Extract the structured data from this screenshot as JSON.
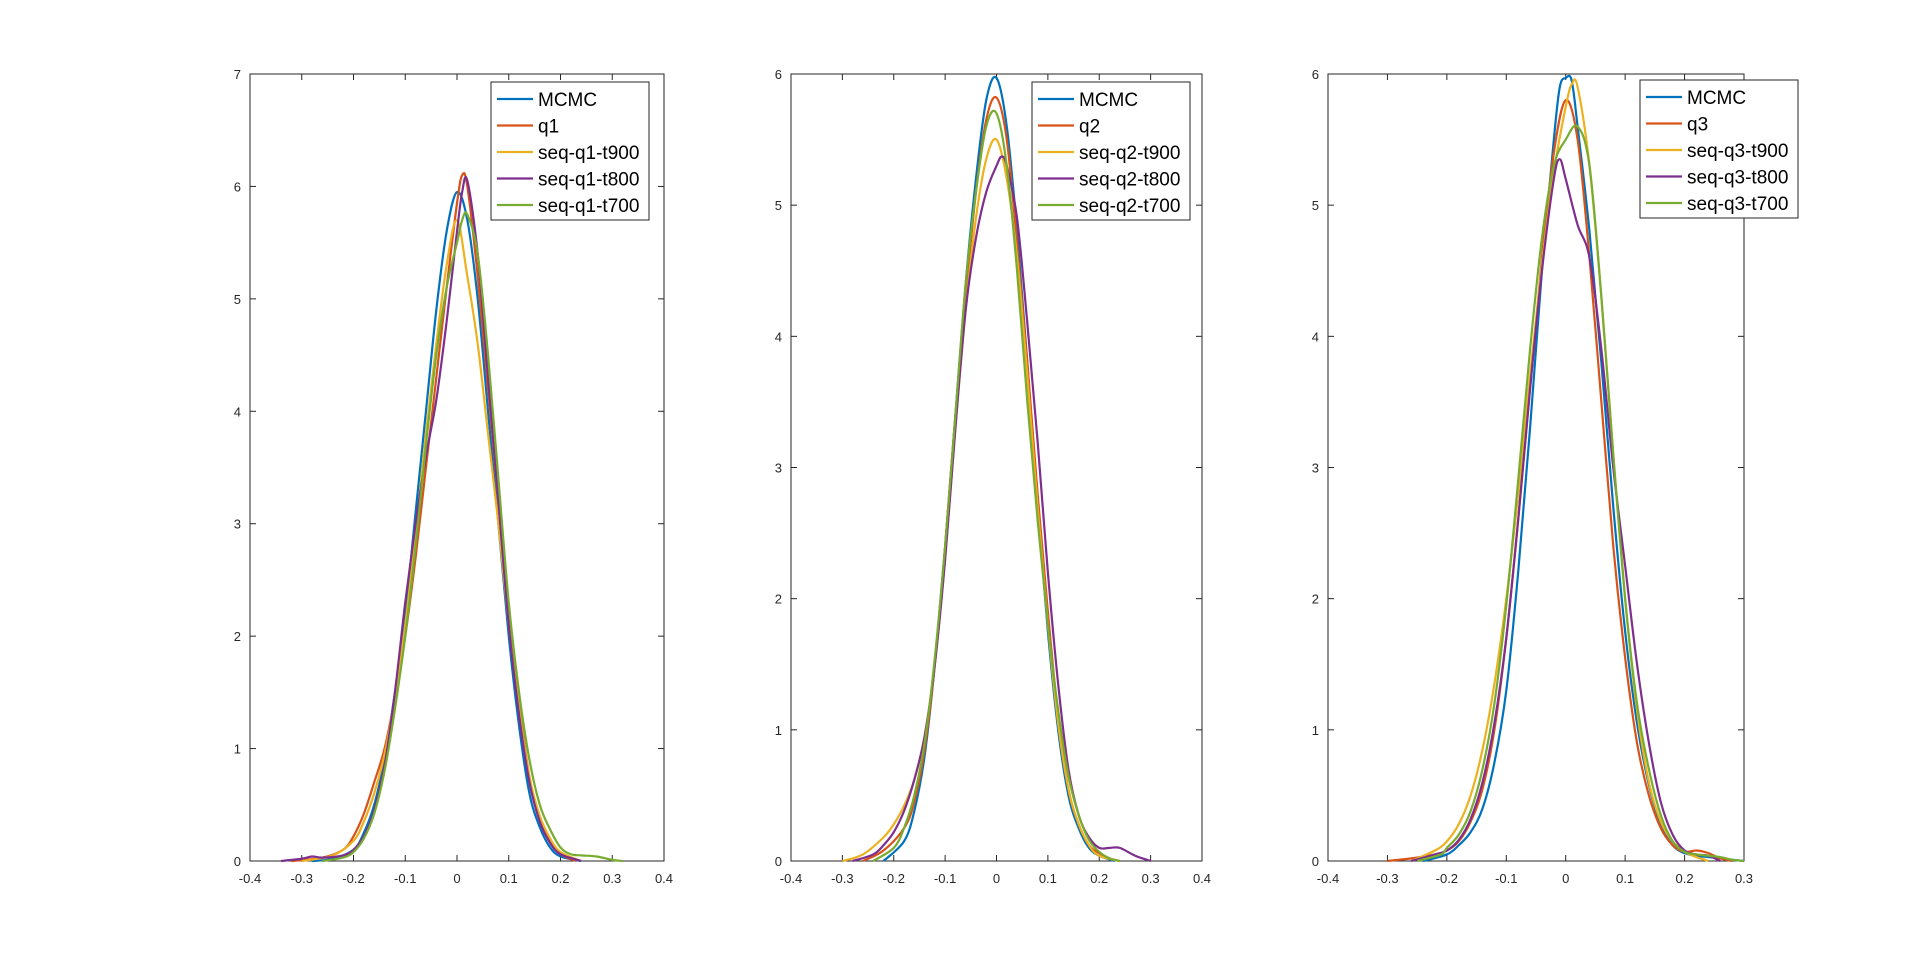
{
  "colors": {
    "mcmc": "#0072BD",
    "q": "#D95319",
    "t900": "#EDB120",
    "t800": "#7E2F8E",
    "t700": "#77AC30",
    "axis": "#262626"
  },
  "chart_data": [
    {
      "type": "line",
      "xlim": [
        -0.4,
        0.4
      ],
      "ylim": [
        0,
        7
      ],
      "xticks": [
        -0.4,
        -0.3,
        -0.2,
        -0.1,
        0,
        0.1,
        0.2,
        0.3,
        0.4
      ],
      "xtick_labels": [
        "-0.4",
        "-0.3",
        "-0.2",
        "-0.1",
        "0",
        "0.1",
        "0.2",
        "0.3",
        "0.4"
      ],
      "yticks": [
        0,
        1,
        2,
        3,
        4,
        5,
        6,
        7
      ],
      "ytick_labels": [
        "0",
        "1",
        "2",
        "3",
        "4",
        "5",
        "6",
        "7"
      ],
      "legend_position": "top-right",
      "series": [
        {
          "name": "MCMC",
          "color": "#0072BD",
          "x": [
            -0.28,
            -0.24,
            -0.2,
            -0.18,
            -0.16,
            -0.14,
            -0.12,
            -0.1,
            -0.08,
            -0.06,
            -0.04,
            -0.02,
            0,
            0.02,
            0.04,
            0.06,
            0.08,
            0.1,
            0.12,
            0.14,
            0.16,
            0.18,
            0.2,
            0.24
          ],
          "y": [
            0,
            0.02,
            0.1,
            0.25,
            0.5,
            0.9,
            1.5,
            2.2,
            3.1,
            4.0,
            4.9,
            5.6,
            5.95,
            5.7,
            5.0,
            4.0,
            3.0,
            2.0,
            1.2,
            0.6,
            0.3,
            0.12,
            0.04,
            0
          ]
        },
        {
          "name": "q1",
          "color": "#D95319",
          "x": [
            -0.32,
            -0.26,
            -0.22,
            -0.2,
            -0.18,
            -0.16,
            -0.14,
            -0.12,
            -0.1,
            -0.08,
            -0.06,
            -0.04,
            -0.02,
            0,
            0.01,
            0.02,
            0.04,
            0.06,
            0.08,
            0.1,
            0.12,
            0.14,
            0.16,
            0.18,
            0.2,
            0.23
          ],
          "y": [
            0,
            0.03,
            0.1,
            0.22,
            0.42,
            0.7,
            1.0,
            1.45,
            2.0,
            2.7,
            3.5,
            4.3,
            5.1,
            5.85,
            6.1,
            6.0,
            5.2,
            4.2,
            3.2,
            2.2,
            1.4,
            0.75,
            0.38,
            0.18,
            0.06,
            0
          ]
        },
        {
          "name": "seq-q1-t900",
          "color": "#EDB120",
          "x": [
            -0.3,
            -0.24,
            -0.2,
            -0.18,
            -0.16,
            -0.14,
            -0.12,
            -0.1,
            -0.08,
            -0.06,
            -0.04,
            -0.02,
            0,
            0.02,
            0.04,
            0.06,
            0.08,
            0.1,
            0.12,
            0.14,
            0.16,
            0.18,
            0.2,
            0.24
          ],
          "y": [
            0,
            0.05,
            0.18,
            0.35,
            0.6,
            0.95,
            1.45,
            2.1,
            2.9,
            3.8,
            4.6,
            5.3,
            5.7,
            5.2,
            4.6,
            3.8,
            3.0,
            2.1,
            1.35,
            0.75,
            0.4,
            0.2,
            0.08,
            0
          ]
        },
        {
          "name": "seq-q1-t800",
          "color": "#7E2F8E",
          "x": [
            -0.34,
            -0.3,
            -0.28,
            -0.26,
            -0.22,
            -0.2,
            -0.18,
            -0.16,
            -0.14,
            -0.12,
            -0.1,
            -0.08,
            -0.06,
            -0.04,
            -0.02,
            0,
            0.01,
            0.02,
            0.04,
            0.06,
            0.08,
            0.1,
            0.12,
            0.14,
            0.16,
            0.18,
            0.2,
            0.24
          ],
          "y": [
            0,
            0.02,
            0.04,
            0.03,
            0.05,
            0.1,
            0.22,
            0.45,
            0.85,
            1.5,
            2.3,
            3.0,
            3.6,
            4.1,
            4.8,
            5.6,
            5.95,
            6.05,
            5.4,
            4.3,
            3.2,
            2.1,
            1.3,
            0.7,
            0.35,
            0.16,
            0.06,
            0
          ]
        },
        {
          "name": "seq-q1-t700",
          "color": "#77AC30",
          "x": [
            -0.26,
            -0.22,
            -0.2,
            -0.18,
            -0.16,
            -0.14,
            -0.12,
            -0.1,
            -0.08,
            -0.06,
            -0.04,
            -0.02,
            0,
            0.01,
            0.02,
            0.04,
            0.06,
            0.08,
            0.1,
            0.12,
            0.14,
            0.16,
            0.18,
            0.2,
            0.22,
            0.24,
            0.27,
            0.3,
            0.32
          ],
          "y": [
            0,
            0.03,
            0.08,
            0.2,
            0.42,
            0.8,
            1.35,
            2.0,
            2.8,
            3.7,
            4.5,
            5.1,
            5.5,
            5.7,
            5.75,
            5.4,
            4.5,
            3.4,
            2.3,
            1.5,
            0.9,
            0.5,
            0.28,
            0.12,
            0.06,
            0.05,
            0.04,
            0.01,
            0
          ]
        }
      ],
      "legend_labels": [
        "MCMC",
        "q1",
        "seq-q1-t900",
        "seq-q1-t800",
        "seq-q1-t700"
      ]
    },
    {
      "type": "line",
      "xlim": [
        -0.4,
        0.4
      ],
      "ylim": [
        0,
        6
      ],
      "xticks": [
        -0.4,
        -0.3,
        -0.2,
        -0.1,
        0,
        0.1,
        0.2,
        0.3,
        0.4
      ],
      "xtick_labels": [
        "-0.4",
        "-0.3",
        "-0.2",
        "-0.1",
        "0",
        "0.1",
        "0.2",
        "0.3",
        "0.4"
      ],
      "yticks": [
        0,
        1,
        2,
        3,
        4,
        5,
        6
      ],
      "ytick_labels": [
        "0",
        "1",
        "2",
        "3",
        "4",
        "5",
        "6"
      ],
      "legend_position": "top-right",
      "series": [
        {
          "name": "MCMC",
          "color": "#0072BD",
          "x": [
            -0.22,
            -0.18,
            -0.16,
            -0.14,
            -0.12,
            -0.1,
            -0.08,
            -0.06,
            -0.04,
            -0.02,
            0,
            0.02,
            0.04,
            0.06,
            0.08,
            0.1,
            0.12,
            0.14,
            0.16,
            0.18,
            0.2,
            0.23
          ],
          "y": [
            0,
            0.15,
            0.38,
            0.8,
            1.5,
            2.4,
            3.4,
            4.4,
            5.2,
            5.8,
            5.97,
            5.6,
            4.8,
            3.8,
            2.7,
            1.75,
            1.0,
            0.5,
            0.25,
            0.1,
            0.04,
            0
          ]
        },
        {
          "name": "q2",
          "color": "#D95319",
          "x": [
            -0.26,
            -0.22,
            -0.18,
            -0.16,
            -0.14,
            -0.12,
            -0.1,
            -0.08,
            -0.06,
            -0.04,
            -0.02,
            0,
            0.02,
            0.04,
            0.06,
            0.08,
            0.1,
            0.12,
            0.14,
            0.16,
            0.18,
            0.2,
            0.22,
            0.24
          ],
          "y": [
            0,
            0.08,
            0.25,
            0.45,
            0.85,
            1.5,
            2.4,
            3.4,
            4.3,
            5.1,
            5.65,
            5.82,
            5.5,
            4.7,
            3.8,
            2.8,
            1.9,
            1.1,
            0.55,
            0.28,
            0.12,
            0.06,
            0.02,
            0
          ]
        },
        {
          "name": "seq-q2-t900",
          "color": "#EDB120",
          "x": [
            -0.3,
            -0.26,
            -0.22,
            -0.2,
            -0.18,
            -0.16,
            -0.14,
            -0.12,
            -0.1,
            -0.08,
            -0.06,
            -0.04,
            -0.02,
            0,
            0.02,
            0.04,
            0.06,
            0.08,
            0.1,
            0.12,
            0.14,
            0.16,
            0.18,
            0.2,
            0.24
          ],
          "y": [
            0,
            0.05,
            0.18,
            0.28,
            0.42,
            0.62,
            0.95,
            1.5,
            2.3,
            3.3,
            4.2,
            4.9,
            5.35,
            5.5,
            5.2,
            4.6,
            3.7,
            2.7,
            1.8,
            1.05,
            0.55,
            0.28,
            0.12,
            0.04,
            0
          ]
        },
        {
          "name": "seq-q2-t800",
          "color": "#7E2F8E",
          "x": [
            -0.28,
            -0.24,
            -0.22,
            -0.2,
            -0.18,
            -0.16,
            -0.14,
            -0.12,
            -0.1,
            -0.08,
            -0.06,
            -0.04,
            -0.02,
            0,
            0.01,
            0.02,
            0.04,
            0.06,
            0.08,
            0.1,
            0.12,
            0.14,
            0.16,
            0.18,
            0.2,
            0.22,
            0.24,
            0.27,
            0.3
          ],
          "y": [
            0,
            0.05,
            0.12,
            0.22,
            0.38,
            0.62,
            0.95,
            1.5,
            2.3,
            3.3,
            4.2,
            4.75,
            5.1,
            5.3,
            5.37,
            5.3,
            4.9,
            4.1,
            3.2,
            2.2,
            1.35,
            0.7,
            0.35,
            0.18,
            0.1,
            0.1,
            0.1,
            0.04,
            0
          ]
        },
        {
          "name": "seq-q2-t700",
          "color": "#77AC30",
          "x": [
            -0.24,
            -0.2,
            -0.18,
            -0.16,
            -0.14,
            -0.12,
            -0.1,
            -0.08,
            -0.06,
            -0.04,
            -0.02,
            0,
            0.02,
            0.04,
            0.06,
            0.08,
            0.1,
            0.12,
            0.14,
            0.16,
            0.18,
            0.2,
            0.22,
            0.24
          ],
          "y": [
            0,
            0.1,
            0.25,
            0.5,
            0.9,
            1.55,
            2.4,
            3.4,
            4.4,
            5.1,
            5.6,
            5.7,
            5.3,
            4.5,
            3.5,
            2.6,
            1.8,
            1.15,
            0.65,
            0.35,
            0.16,
            0.07,
            0.02,
            0
          ]
        }
      ],
      "legend_labels": [
        "MCMC",
        "q2",
        "seq-q2-t900",
        "seq-q2-t800",
        "seq-q2-t700"
      ]
    },
    {
      "type": "line",
      "xlim": [
        -0.4,
        0.3
      ],
      "ylim": [
        0,
        6
      ],
      "xticks": [
        -0.4,
        -0.3,
        -0.2,
        -0.1,
        0,
        0.1,
        0.2,
        0.3
      ],
      "xtick_labels": [
        "-0.4",
        "-0.3",
        "-0.2",
        "-0.1",
        "0",
        "0.1",
        "0.2",
        "0.3"
      ],
      "yticks": [
        0,
        1,
        2,
        3,
        4,
        5,
        6
      ],
      "ytick_labels": [
        "0",
        "1",
        "2",
        "3",
        "4",
        "5",
        "6"
      ],
      "legend_position": "top-right",
      "series": [
        {
          "name": "MCMC",
          "color": "#0072BD",
          "x": [
            -0.24,
            -0.2,
            -0.18,
            -0.16,
            -0.14,
            -0.12,
            -0.1,
            -0.08,
            -0.06,
            -0.04,
            -0.02,
            -0.01,
            0,
            0.01,
            0.02,
            0.04,
            0.06,
            0.08,
            0.1,
            0.12,
            0.14,
            0.16,
            0.18,
            0.2,
            0.22,
            0.24,
            0.26,
            0.28,
            0.3
          ],
          "y": [
            0,
            0.05,
            0.12,
            0.22,
            0.4,
            0.75,
            1.3,
            2.2,
            3.3,
            4.5,
            5.5,
            5.9,
            5.97,
            5.95,
            5.6,
            4.8,
            3.8,
            2.7,
            1.75,
            1.05,
            0.58,
            0.28,
            0.12,
            0.06,
            0.04,
            0.03,
            0.02,
            0.01,
            0
          ]
        },
        {
          "name": "q3",
          "color": "#D95319",
          "x": [
            -0.3,
            -0.26,
            -0.22,
            -0.2,
            -0.18,
            -0.16,
            -0.14,
            -0.12,
            -0.1,
            -0.08,
            -0.06,
            -0.04,
            -0.02,
            0,
            0.02,
            0.04,
            0.06,
            0.08,
            0.1,
            0.12,
            0.14,
            0.16,
            0.18,
            0.2,
            0.22,
            0.24,
            0.26,
            0.28
          ],
          "y": [
            0,
            0.02,
            0.05,
            0.08,
            0.15,
            0.3,
            0.55,
            1.0,
            1.7,
            2.6,
            3.6,
            4.6,
            5.4,
            5.8,
            5.5,
            4.6,
            3.5,
            2.4,
            1.55,
            0.9,
            0.5,
            0.25,
            0.12,
            0.07,
            0.08,
            0.06,
            0.02,
            0
          ]
        },
        {
          "name": "seq-q3-t900",
          "color": "#EDB120",
          "x": [
            -0.26,
            -0.22,
            -0.2,
            -0.18,
            -0.16,
            -0.14,
            -0.12,
            -0.1,
            -0.08,
            -0.06,
            -0.04,
            -0.02,
            0,
            0.01,
            0.02,
            0.04,
            0.06,
            0.08,
            0.1,
            0.12,
            0.14,
            0.16,
            0.18,
            0.2,
            0.22,
            0.24
          ],
          "y": [
            0,
            0.08,
            0.15,
            0.28,
            0.5,
            0.85,
            1.35,
            2.0,
            2.8,
            3.7,
            4.55,
            5.25,
            5.75,
            5.92,
            5.9,
            5.3,
            4.3,
            3.1,
            2.0,
            1.15,
            0.6,
            0.3,
            0.15,
            0.07,
            0.03,
            0
          ]
        },
        {
          "name": "seq-q3-t800",
          "color": "#7E2F8E",
          "x": [
            -0.26,
            -0.22,
            -0.2,
            -0.18,
            -0.16,
            -0.14,
            -0.12,
            -0.1,
            -0.08,
            -0.06,
            -0.04,
            -0.02,
            -0.01,
            0,
            0.02,
            0.04,
            0.06,
            0.08,
            0.1,
            0.12,
            0.14,
            0.16,
            0.18,
            0.2,
            0.22,
            0.24,
            0.26
          ],
          "y": [
            0,
            0.05,
            0.08,
            0.16,
            0.32,
            0.6,
            1.05,
            1.7,
            2.6,
            3.6,
            4.5,
            5.2,
            5.35,
            5.2,
            4.85,
            4.6,
            3.9,
            3.0,
            2.25,
            1.5,
            0.9,
            0.45,
            0.2,
            0.08,
            0.05,
            0.04,
            0
          ]
        },
        {
          "name": "seq-q3-t700",
          "color": "#77AC30",
          "x": [
            -0.25,
            -0.21,
            -0.2,
            -0.18,
            -0.16,
            -0.14,
            -0.12,
            -0.1,
            -0.08,
            -0.06,
            -0.04,
            -0.02,
            0,
            0.02,
            0.04,
            0.06,
            0.08,
            0.1,
            0.12,
            0.14,
            0.16,
            0.18,
            0.2,
            0.22,
            0.24,
            0.26,
            0.28,
            0.3
          ],
          "y": [
            0,
            0.05,
            0.1,
            0.2,
            0.38,
            0.7,
            1.2,
            1.95,
            2.9,
            3.9,
            4.75,
            5.3,
            5.5,
            5.6,
            5.3,
            4.3,
            3.1,
            2.0,
            1.2,
            0.7,
            0.35,
            0.15,
            0.07,
            0.05,
            0.04,
            0.03,
            0.01,
            0
          ]
        }
      ],
      "legend_labels": [
        "MCMC",
        "q3",
        "seq-q3-t900",
        "seq-q3-t800",
        "seq-q3-t700"
      ]
    }
  ]
}
